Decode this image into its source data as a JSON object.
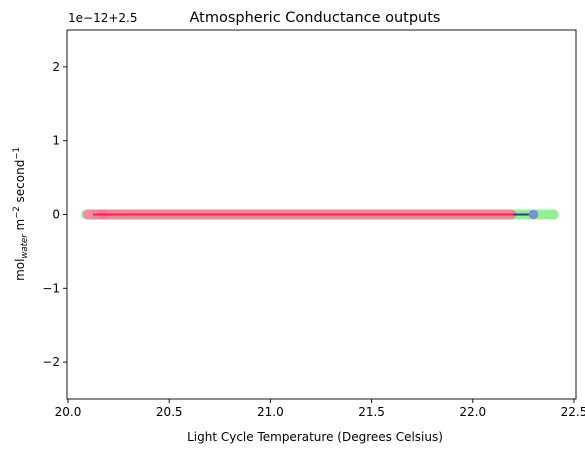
{
  "chart_data": {
    "type": "line",
    "title": "Atmospheric Conductance outputs",
    "xlabel": "Light Cycle Temperature (Degrees Celsius)",
    "ylabel": {
      "base": "mol",
      "subscript": "water",
      "middle": " m",
      "exp1": "−2",
      "after": " second",
      "exp2": "−1"
    },
    "offset_label": "1e−12+2.5",
    "xlim": [
      19.995,
      22.51
    ],
    "ylim": [
      -2.5,
      2.5
    ],
    "x_ticks": [
      20.0,
      20.5,
      21.0,
      21.5,
      22.0,
      22.5
    ],
    "x_tick_labels": [
      "20.0",
      "20.5",
      "21.0",
      "21.5",
      "22.0",
      "22.5"
    ],
    "y_ticks": [
      2,
      1,
      0,
      -1,
      -2
    ],
    "y_tick_labels": [
      "2",
      "1",
      "0",
      "−1",
      "−2"
    ],
    "grid": false,
    "legend": "none",
    "series": [
      {
        "color": "#90ee90",
        "marker_alpha": 0.85,
        "line": false,
        "x_range": [
          20.09,
          22.4
        ],
        "marker_x": [
          20.09,
          20.14,
          20.2,
          20.24,
          20.28,
          20.33,
          20.38,
          22.2,
          22.24,
          22.28,
          22.33,
          22.37,
          22.4
        ],
        "y": 0
      },
      {
        "color": "#ff6a9a",
        "marker_alpha": 0.75,
        "line": false,
        "x_range": [
          20.1,
          22.19
        ],
        "marker_x": [
          20.1,
          20.17
        ],
        "y": 0
      },
      {
        "color": "#2e3a8c",
        "marker_color": "#7b8fd6",
        "marker_alpha": 1.0,
        "line": true,
        "x_range": [
          20.1,
          22.3
        ],
        "marker_x": [
          20.1,
          22.3
        ],
        "y": 0
      },
      {
        "color": "#ff1f4f",
        "marker_color": "#ff8aa0",
        "marker_alpha": 1.0,
        "line": true,
        "x_range": [
          20.1,
          22.2
        ],
        "marker_x": [
          20.1
        ],
        "y": 0
      }
    ]
  }
}
